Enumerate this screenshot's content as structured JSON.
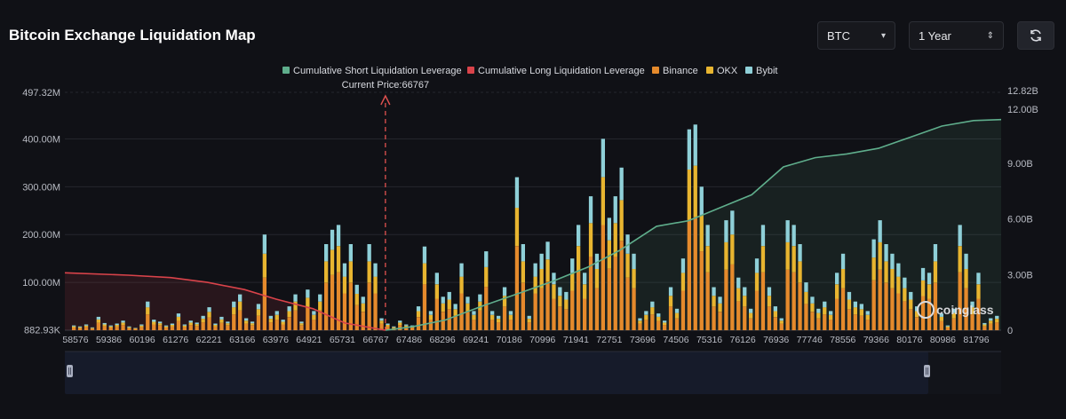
{
  "header": {
    "title": "Bitcoin Exchange Liquidation Map",
    "symbol": "BTC",
    "range": "1 Year",
    "refresh_icon": "refresh-icon"
  },
  "watermark": "coinglass",
  "colors": {
    "short": "#5fae8c",
    "long": "#d9434a",
    "binance": "#e58a2c",
    "okx": "#e8b530",
    "bybit": "#8fd0d8",
    "marker": "#e0514f"
  },
  "chart_data": {
    "type": "bar",
    "title": "Bitcoin Exchange Liquidation Map",
    "current_price_label": "Current Price:66767",
    "current_price": 66767,
    "legend": [
      {
        "name": "Cumulative Short Liquidation Leverage",
        "color": "#5fae8c"
      },
      {
        "name": "Cumulative Long Liquidation Leverage",
        "color": "#d9434a"
      },
      {
        "name": "Binance",
        "color": "#e58a2c"
      },
      {
        "name": "OKX",
        "color": "#e8b530"
      },
      {
        "name": "Bybit",
        "color": "#8fd0d8"
      }
    ],
    "x_tick_labels": [
      "58576",
      "59386",
      "60196",
      "61276",
      "62221",
      "63166",
      "63976",
      "64921",
      "65731",
      "66767",
      "67486",
      "68296",
      "69241",
      "70186",
      "70996",
      "71941",
      "72751",
      "73696",
      "74506",
      "75316",
      "76126",
      "76936",
      "77746",
      "78556",
      "79366",
      "80176",
      "80986",
      "81796"
    ],
    "xlim": [
      58576,
      82500
    ],
    "y_left": {
      "ticks": [
        "882.93K",
        "100.00M",
        "200.00M",
        "300.00M",
        "400.00M",
        "497.32M"
      ],
      "range_millions": [
        0.883,
        497.32
      ]
    },
    "y_right": {
      "ticks": [
        "0",
        "3.00B",
        "6.00B",
        "9.00B",
        "12.00B",
        "12.82B"
      ],
      "range_billions": [
        0,
        12.82
      ]
    },
    "bars_millions": [
      10,
      8,
      12,
      6,
      28,
      15,
      10,
      14,
      20,
      8,
      5,
      12,
      60,
      22,
      18,
      10,
      14,
      35,
      12,
      20,
      16,
      30,
      48,
      14,
      28,
      18,
      60,
      75,
      25,
      18,
      55,
      200,
      30,
      40,
      22,
      50,
      75,
      18,
      85,
      40,
      75,
      180,
      210,
      220,
      140,
      180,
      95,
      70,
      180,
      140,
      25,
      14,
      8,
      20,
      12,
      10,
      50,
      175,
      40,
      120,
      70,
      80,
      55,
      140,
      70,
      40,
      75,
      165,
      40,
      30,
      90,
      40,
      320,
      180,
      30,
      140,
      160,
      185,
      120,
      90,
      80,
      150,
      220,
      120,
      280,
      160,
      400,
      235,
      280,
      340,
      200,
      160,
      25,
      40,
      60,
      35,
      20,
      90,
      45,
      150,
      420,
      430,
      300,
      220,
      90,
      70,
      230,
      250,
      110,
      90,
      45,
      150,
      220,
      90,
      50,
      25,
      230,
      220,
      180,
      100,
      70,
      45,
      60,
      40,
      120,
      160,
      80,
      60,
      55,
      40,
      190,
      230,
      180,
      160,
      140,
      110,
      80,
      50,
      130,
      120,
      180,
      35,
      10,
      45,
      220,
      160,
      60,
      120,
      15,
      25,
      30
    ],
    "bars_split": {
      "binance": 0.55,
      "okx": 0.25,
      "bybit": 0.2
    },
    "short_cumulative_billions": [
      [
        66767,
        0
      ],
      [
        67486,
        0.2
      ],
      [
        68296,
        0.55
      ],
      [
        69241,
        1.3
      ],
      [
        70186,
        2.0
      ],
      [
        70996,
        2.6
      ],
      [
        71941,
        3.4
      ],
      [
        72751,
        4.3
      ],
      [
        73696,
        5.6
      ],
      [
        74506,
        5.9
      ],
      [
        75316,
        6.6
      ],
      [
        76126,
        7.3
      ],
      [
        76936,
        8.8
      ],
      [
        77746,
        9.3
      ],
      [
        78556,
        9.5
      ],
      [
        79366,
        9.8
      ],
      [
        80176,
        10.4
      ],
      [
        80986,
        11.0
      ],
      [
        81796,
        11.3
      ],
      [
        82500,
        11.35
      ]
    ],
    "long_cumulative_millions": [
      [
        58576,
        120
      ],
      [
        60196,
        115
      ],
      [
        61276,
        110
      ],
      [
        62221,
        100
      ],
      [
        63166,
        85
      ],
      [
        63976,
        65
      ],
      [
        64921,
        45
      ],
      [
        65731,
        15
      ],
      [
        66767,
        0
      ]
    ]
  }
}
